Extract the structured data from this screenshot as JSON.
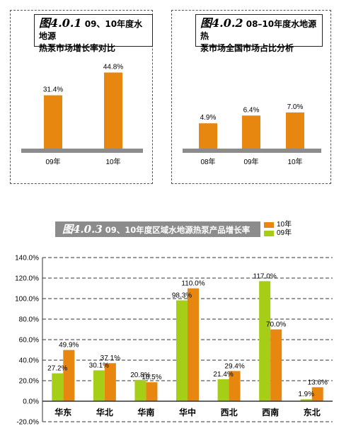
{
  "charts": {
    "c1": {
      "fig": "图4.0.1",
      "title_line1": " 09、10年度水地源",
      "title_line2": "热泵市场增长率对比"
    },
    "c2": {
      "fig": "图4.0.2",
      "title_line1": " 08–10年度水地源热",
      "title_line2": "泵市场全国市场占比分析"
    },
    "c3": {
      "fig": "图4.0.3",
      "title": " 09、10年度区域水地源热泵产品增长率"
    }
  },
  "colors": {
    "orange": "#e8870f",
    "green": "#a6ce16",
    "gray": "#8c8c8c"
  },
  "chart_data": [
    {
      "type": "bar",
      "categories": [
        "09年",
        "10年"
      ],
      "values": [
        31.4,
        44.8
      ],
      "value_labels": [
        "31.4%",
        "44.8%"
      ]
    },
    {
      "type": "bar",
      "categories": [
        "08年",
        "09年",
        "10年"
      ],
      "values": [
        4.9,
        6.4,
        7.0
      ],
      "value_labels": [
        "4.9%",
        "6.4%",
        "7.0%"
      ]
    },
    {
      "type": "bar",
      "categories": [
        "华东",
        "华北",
        "华南",
        "华中",
        "西北",
        "西南",
        "东北"
      ],
      "series": [
        {
          "name": "09年",
          "color": "#a6ce16",
          "values": [
            27.2,
            30.1,
            20.8,
            98.3,
            21.4,
            117.0,
            1.9
          ],
          "value_labels": [
            "27.2%",
            "30.1%",
            "20.8%",
            "98.3%",
            "21.4%",
            "117.0%",
            "1.9%"
          ]
        },
        {
          "name": "10年",
          "color": "#e8870f",
          "values": [
            49.9,
            37.1,
            18.5,
            110.0,
            29.4,
            70.0,
            13.6
          ],
          "value_labels": [
            "49.9%",
            "37.1%",
            "18.5%",
            "110.0%",
            "29.4%",
            "70.0%",
            "13.6%"
          ]
        }
      ],
      "ylim": [
        -20,
        140
      ],
      "yticks": [
        "-20.0%",
        "0.0%",
        "20.0%",
        "40.0%",
        "60.0%",
        "80.0%",
        "100.0%",
        "120.0%",
        "140.0%"
      ],
      "grid": true,
      "legend": "top-right"
    }
  ]
}
